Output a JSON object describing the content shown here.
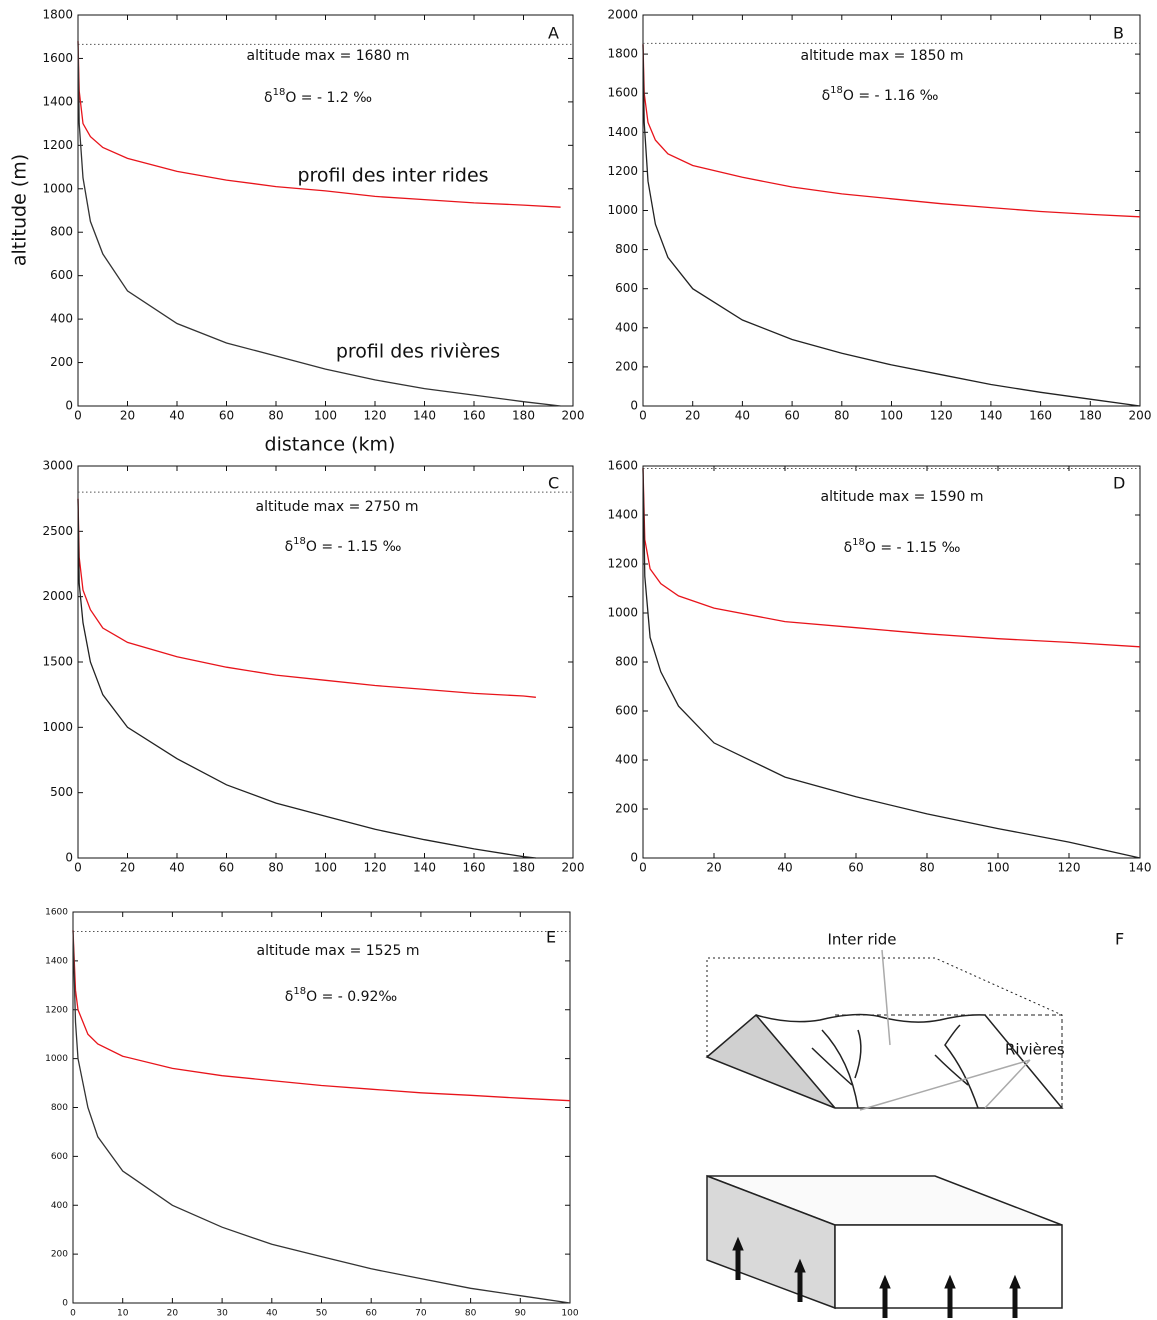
{
  "chart_data": [
    {
      "type": "line",
      "panel": "A",
      "xlabel": "distance (km)",
      "ylabel": "altitude (m)",
      "max_label": "altitude max = 1680 m",
      "delta": {
        "symbol": "δ",
        "sup": "18",
        "text": "O = - 1.2 ‰"
      },
      "labels": [
        "profil des inter rides",
        "profil des rivières"
      ],
      "xlim": [
        0,
        200
      ],
      "ylim": [
        0,
        1800
      ],
      "xticks": [
        0,
        20,
        40,
        60,
        80,
        100,
        120,
        140,
        160,
        180,
        200
      ],
      "yticks": [
        0,
        200,
        400,
        600,
        800,
        1000,
        1200,
        1400,
        1600,
        1800
      ],
      "max_line": 1665,
      "x": [
        0,
        0.5,
        2,
        5,
        10,
        20,
        40,
        60,
        80,
        100,
        120,
        140,
        160,
        180,
        195
      ],
      "series": [
        {
          "color": "#e8141b",
          "values": [
            1680,
            1450,
            1300,
            1240,
            1190,
            1140,
            1080,
            1040,
            1010,
            990,
            965,
            950,
            935,
            925,
            915
          ]
        },
        {
          "color": "#333333",
          "values": [
            1680,
            1300,
            1050,
            850,
            700,
            530,
            380,
            290,
            230,
            170,
            120,
            80,
            50,
            20,
            0
          ]
        }
      ]
    },
    {
      "type": "line",
      "panel": "B",
      "max_label": "altitude max = 1850 m",
      "delta": {
        "symbol": "δ",
        "sup": "18",
        "text": "O = - 1.16 ‰"
      },
      "xlim": [
        0,
        200
      ],
      "ylim": [
        0,
        2000
      ],
      "xticks": [
        0,
        20,
        40,
        60,
        80,
        100,
        120,
        140,
        160,
        180,
        200
      ],
      "yticks": [
        0,
        200,
        400,
        600,
        800,
        1000,
        1200,
        1400,
        1600,
        1800,
        2000
      ],
      "max_line": 1855,
      "x": [
        0,
        0.5,
        2,
        5,
        10,
        20,
        40,
        60,
        80,
        100,
        120,
        140,
        160,
        180,
        200
      ],
      "series": [
        {
          "color": "#e8141b",
          "values": [
            1850,
            1600,
            1450,
            1360,
            1290,
            1230,
            1170,
            1120,
            1085,
            1060,
            1035,
            1015,
            995,
            980,
            968
          ]
        },
        {
          "color": "#222222",
          "values": [
            1850,
            1450,
            1150,
            930,
            760,
            600,
            440,
            340,
            270,
            210,
            160,
            110,
            70,
            35,
            0
          ]
        }
      ]
    },
    {
      "type": "line",
      "panel": "C",
      "max_label": "altitude max = 2750 m",
      "delta": {
        "symbol": "δ",
        "sup": "18",
        "text": "O = - 1.15 ‰"
      },
      "xlim": [
        0,
        200
      ],
      "ylim": [
        0,
        3000
      ],
      "xticks": [
        0,
        20,
        40,
        60,
        80,
        100,
        120,
        140,
        160,
        180,
        200
      ],
      "yticks": [
        0,
        500,
        1000,
        1500,
        2000,
        2500,
        3000
      ],
      "max_line": 2800,
      "x": [
        0,
        0.5,
        2,
        5,
        10,
        20,
        40,
        60,
        80,
        100,
        120,
        140,
        160,
        180,
        185
      ],
      "series": [
        {
          "color": "#e8141b",
          "values": [
            2750,
            2300,
            2050,
            1900,
            1760,
            1650,
            1540,
            1460,
            1400,
            1360,
            1320,
            1290,
            1260,
            1240,
            1230
          ]
        },
        {
          "color": "#222222",
          "values": [
            2750,
            2100,
            1800,
            1500,
            1250,
            1000,
            760,
            560,
            420,
            320,
            220,
            140,
            70,
            10,
            0
          ]
        }
      ]
    },
    {
      "type": "line",
      "panel": "D",
      "max_label": "altitude max = 1590 m",
      "delta": {
        "symbol": "δ",
        "sup": "18",
        "text": "O = - 1.15 ‰"
      },
      "xlim": [
        0,
        140
      ],
      "ylim": [
        0,
        1600
      ],
      "xticks": [
        0,
        20,
        40,
        60,
        80,
        100,
        120,
        140
      ],
      "yticks": [
        0,
        200,
        400,
        600,
        800,
        1000,
        1200,
        1400,
        1600
      ],
      "max_line": 1590,
      "x": [
        0,
        0.5,
        2,
        5,
        10,
        20,
        40,
        60,
        80,
        100,
        120,
        140
      ],
      "series": [
        {
          "color": "#e8141b",
          "values": [
            1590,
            1300,
            1180,
            1120,
            1070,
            1020,
            965,
            940,
            915,
            895,
            880,
            862
          ]
        },
        {
          "color": "#222222",
          "values": [
            1590,
            1150,
            900,
            760,
            620,
            470,
            330,
            250,
            180,
            120,
            65,
            0
          ]
        }
      ]
    },
    {
      "type": "line",
      "panel": "E",
      "max_label": "altitude max = 1525 m",
      "delta": {
        "symbol": "δ",
        "sup": "18",
        "text": "O = - 0.92‰"
      },
      "xlim": [
        0,
        100
      ],
      "ylim": [
        0,
        1600
      ],
      "xticks": [
        0,
        10,
        20,
        30,
        40,
        50,
        60,
        70,
        80,
        90,
        100
      ],
      "yticks": [
        0,
        200,
        400,
        600,
        800,
        1000,
        1200,
        1400,
        1600
      ],
      "max_line": 1520,
      "x": [
        0,
        0.5,
        1,
        3,
        5,
        10,
        20,
        30,
        40,
        50,
        60,
        70,
        80,
        90,
        100
      ],
      "series": [
        {
          "color": "#e8141b",
          "values": [
            1525,
            1280,
            1200,
            1100,
            1060,
            1010,
            960,
            930,
            910,
            890,
            875,
            860,
            850,
            838,
            828
          ]
        },
        {
          "color": "#333333",
          "values": [
            1525,
            1150,
            1000,
            800,
            680,
            540,
            400,
            310,
            240,
            190,
            140,
            100,
            60,
            30,
            0
          ]
        }
      ]
    }
  ],
  "diagram": {
    "panel": "F",
    "top_label": "Inter ride",
    "side_label": "Rivières"
  }
}
